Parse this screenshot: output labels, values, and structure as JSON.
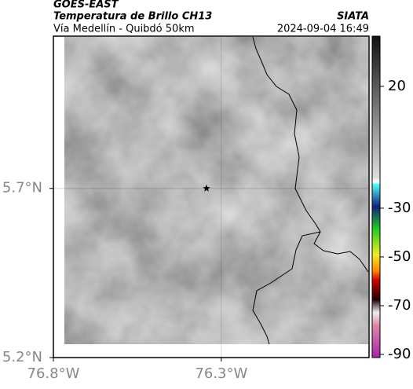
{
  "header": {
    "source": "GOES-EAST",
    "title": "Temperatura de Brillo CH13",
    "agency": "SIATA",
    "subtitle": "Vía Medellín - Quibdó 50km",
    "timestamp": "2024-09-04 16:49"
  },
  "map": {
    "xlim": [
      -76.8,
      -75.86
    ],
    "ylim": [
      5.2,
      6.15
    ],
    "xticks": [
      {
        "value": -76.8,
        "label": "76.8°W"
      },
      {
        "value": -76.3,
        "label": "76.3°W"
      }
    ],
    "yticks": [
      {
        "value": 5.7,
        "label": "5.7°N"
      },
      {
        "value": 5.2,
        "label": "5.2°N"
      }
    ],
    "grid": true,
    "marker": {
      "lon": -76.344,
      "lat": 5.7
    }
  },
  "colorbar": {
    "lim": [
      -91.3,
      40.6
    ],
    "ticks": [
      20,
      -30,
      -50,
      -70,
      -90
    ]
  }
}
